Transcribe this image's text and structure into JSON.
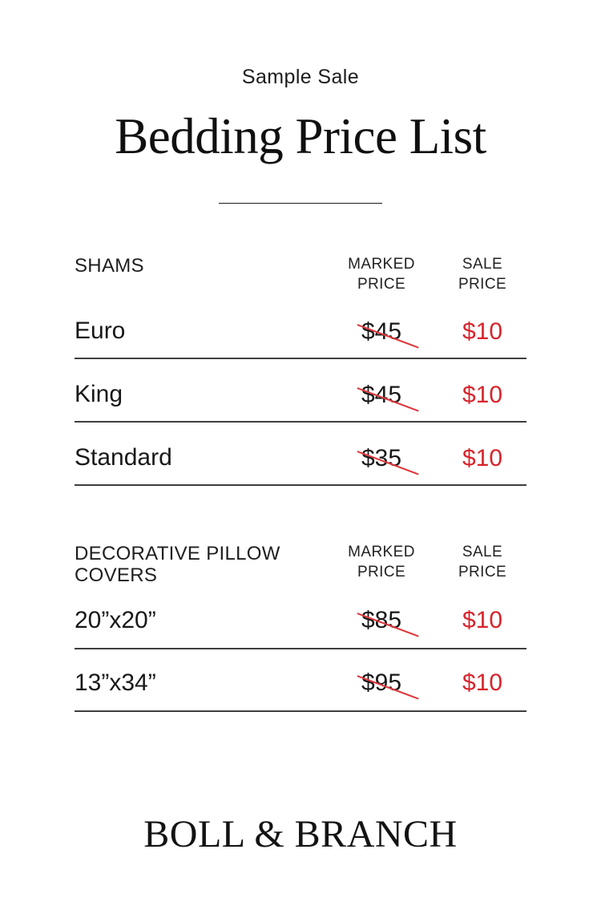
{
  "page": {
    "eyebrow": "Sample Sale",
    "title": "Bedding Price List",
    "brand": "BOLL & BRANCH"
  },
  "columns": {
    "marked": "MARKED PRICE",
    "sale": "SALE PRICE"
  },
  "sections": [
    {
      "name": "SHAMS",
      "rows": [
        {
          "item": "Euro",
          "marked": "$45",
          "sale": "$10"
        },
        {
          "item": "King",
          "marked": "$45",
          "sale": "$10"
        },
        {
          "item": "Standard",
          "marked": "$35",
          "sale": "$10"
        }
      ]
    },
    {
      "name": "DECORATIVE PILLOW COVERS",
      "rows": [
        {
          "item": "20”x20”",
          "marked": "$85",
          "sale": "$10"
        },
        {
          "item": "13”x34”",
          "marked": "$95",
          "sale": "$10"
        }
      ]
    }
  ],
  "colors": {
    "sale_red": "#d7242b",
    "strike_red": "#df383d",
    "text": "#1f1f1f",
    "rule": "#3e3e3e"
  }
}
